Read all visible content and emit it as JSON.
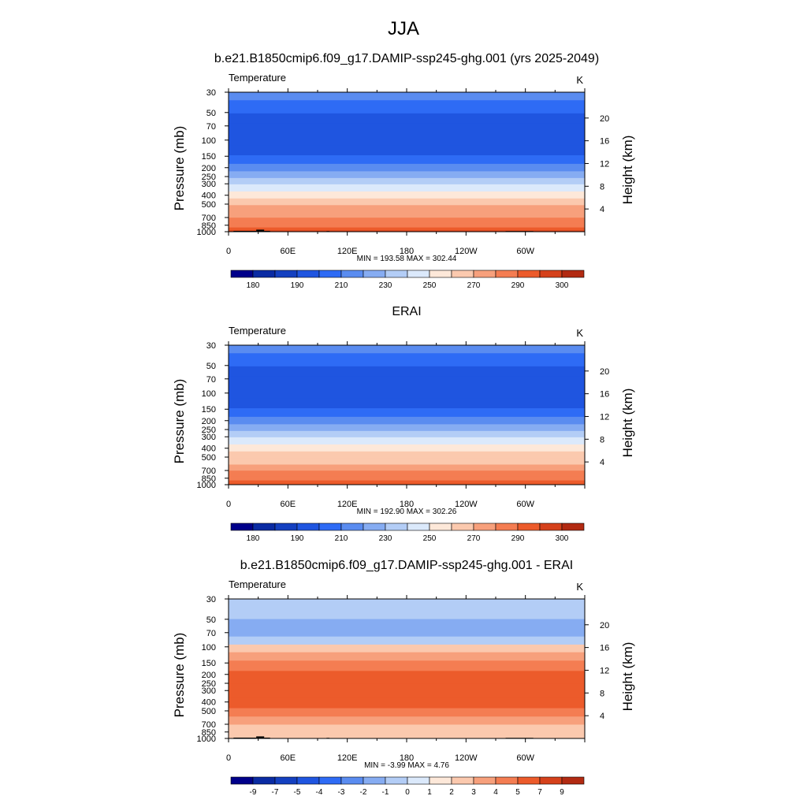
{
  "figure": {
    "season_title": "JJA"
  },
  "chart_data": [
    {
      "type": "heatmap",
      "title": "b.e21.B1850cmip6.f09_g17.DAMIP-ssp245-ghg.001 (yrs 2025-2049)",
      "variable": "Temperature",
      "units": "K",
      "xlabel": "",
      "ylabel": "Pressure (mb)",
      "ylabel_right": "Height (km)",
      "x_ticks": [
        "0",
        "60E",
        "120E",
        "180",
        "120W",
        "60W"
      ],
      "x_tick_values": [
        0,
        60,
        120,
        180,
        240,
        300
      ],
      "xlim": [
        0,
        360
      ],
      "y_scale": "log",
      "y_ticks": [
        "30",
        "50",
        "70",
        "100",
        "150",
        "200",
        "250",
        "300",
        "400",
        "500",
        "700",
        "850",
        "1000"
      ],
      "y_tick_values": [
        30,
        50,
        70,
        100,
        150,
        200,
        250,
        300,
        400,
        500,
        700,
        850,
        1000
      ],
      "ylim": [
        30,
        1000
      ],
      "y_right_ticks": [
        "4",
        "8",
        "12",
        "16",
        "20"
      ],
      "y_right_tick_values": [
        4,
        8,
        12,
        16,
        20
      ],
      "stats": "MIN = 193.58  MAX = 302.44",
      "min": 193.58,
      "max": 302.44,
      "levels": [
        180,
        185,
        190,
        200,
        210,
        220,
        230,
        240,
        250,
        260,
        270,
        280,
        290,
        295,
        300
      ],
      "colorbar_labels": [
        "180",
        "190",
        "210",
        "230",
        "250",
        "270",
        "290",
        "300"
      ],
      "colorbar_label_positions": [
        1,
        3,
        5,
        7,
        9,
        11,
        13,
        15
      ],
      "colors": [
        "#00008a",
        "#0a2ba3",
        "#1440c0",
        "#1f55e0",
        "#2e6bf5",
        "#5a8cf0",
        "#86acf2",
        "#b3cdf6",
        "#dbe9fb",
        "#fde8d9",
        "#fbc9ae",
        "#f7a07c",
        "#f47d52",
        "#ec5b2b",
        "#d5411b",
        "#b22a12"
      ],
      "profile_level_values": [
        {
          "p": 30,
          "v": 210
        },
        {
          "p": 45,
          "v": 205
        },
        {
          "p": 58,
          "v": 197
        },
        {
          "p": 75,
          "v": 194
        },
        {
          "p": 100,
          "v": 193.6
        },
        {
          "p": 130,
          "v": 197
        },
        {
          "p": 165,
          "v": 205
        },
        {
          "p": 200,
          "v": 215
        },
        {
          "p": 240,
          "v": 225
        },
        {
          "p": 280,
          "v": 235
        },
        {
          "p": 330,
          "v": 245
        },
        {
          "p": 400,
          "v": 253
        },
        {
          "p": 470,
          "v": 262
        },
        {
          "p": 560,
          "v": 270
        },
        {
          "p": 650,
          "v": 277
        },
        {
          "p": 760,
          "v": 284
        },
        {
          "p": 860,
          "v": 289
        },
        {
          "p": 940,
          "v": 293
        },
        {
          "p": 1000,
          "v": 297
        }
      ],
      "topography_mask": [
        {
          "x0": 5,
          "x1": 28,
          "p_top": 980
        },
        {
          "x0": 28,
          "x1": 36,
          "p_top": 950
        },
        {
          "x0": 36,
          "x1": 42,
          "p_top": 980
        },
        {
          "x0": 99,
          "x1": 102,
          "p_top": 985
        },
        {
          "x0": 280,
          "x1": 308,
          "p_top": 985
        }
      ]
    },
    {
      "type": "heatmap",
      "title": "ERAI",
      "variable": "Temperature",
      "units": "K",
      "xlabel": "",
      "ylabel": "Pressure (mb)",
      "ylabel_right": "Height (km)",
      "x_ticks": [
        "0",
        "60E",
        "120E",
        "180",
        "120W",
        "60W"
      ],
      "x_tick_values": [
        0,
        60,
        120,
        180,
        240,
        300
      ],
      "xlim": [
        0,
        360
      ],
      "y_scale": "log",
      "y_ticks": [
        "30",
        "50",
        "70",
        "100",
        "150",
        "200",
        "250",
        "300",
        "400",
        "500",
        "700",
        "850",
        "1000"
      ],
      "y_tick_values": [
        30,
        50,
        70,
        100,
        150,
        200,
        250,
        300,
        400,
        500,
        700,
        850,
        1000
      ],
      "ylim": [
        30,
        1000
      ],
      "y_right_ticks": [
        "4",
        "8",
        "12",
        "16",
        "20"
      ],
      "y_right_tick_values": [
        4,
        8,
        12,
        16,
        20
      ],
      "stats": "MIN = 192.90  MAX = 302.26",
      "min": 192.9,
      "max": 302.26,
      "levels": [
        180,
        185,
        190,
        200,
        210,
        220,
        230,
        240,
        250,
        260,
        270,
        280,
        290,
        295,
        300
      ],
      "colorbar_labels": [
        "180",
        "190",
        "210",
        "230",
        "250",
        "270",
        "290",
        "300"
      ],
      "colorbar_label_positions": [
        1,
        3,
        5,
        7,
        9,
        11,
        13,
        15
      ],
      "colors": [
        "#00008a",
        "#0a2ba3",
        "#1440c0",
        "#1f55e0",
        "#2e6bf5",
        "#5a8cf0",
        "#86acf2",
        "#b3cdf6",
        "#dbe9fb",
        "#fde8d9",
        "#fbc9ae",
        "#f7a07c",
        "#f47d52",
        "#ec5b2b",
        "#d5411b",
        "#b22a12"
      ],
      "profile_level_values": [
        {
          "p": 30,
          "v": 210
        },
        {
          "p": 45,
          "v": 205
        },
        {
          "p": 58,
          "v": 197
        },
        {
          "p": 75,
          "v": 194
        },
        {
          "p": 100,
          "v": 192.9
        },
        {
          "p": 130,
          "v": 197
        },
        {
          "p": 165,
          "v": 205
        },
        {
          "p": 200,
          "v": 215
        },
        {
          "p": 240,
          "v": 225
        },
        {
          "p": 280,
          "v": 235
        },
        {
          "p": 330,
          "v": 245
        },
        {
          "p": 400,
          "v": 252
        },
        {
          "p": 470,
          "v": 260
        },
        {
          "p": 560,
          "v": 268
        },
        {
          "p": 650,
          "v": 275
        },
        {
          "p": 760,
          "v": 282
        },
        {
          "p": 860,
          "v": 287
        },
        {
          "p": 940,
          "v": 291
        },
        {
          "p": 1000,
          "v": 294
        }
      ],
      "topography_mask": []
    },
    {
      "type": "heatmap",
      "title": "b.e21.B1850cmip6.f09_g17.DAMIP-ssp245-ghg.001 - ERAI",
      "variable": "Temperature",
      "units": "K",
      "xlabel": "",
      "ylabel": "Pressure (mb)",
      "ylabel_right": "Height (km)",
      "x_ticks": [
        "0",
        "60E",
        "120E",
        "180",
        "120W",
        "60W"
      ],
      "x_tick_values": [
        0,
        60,
        120,
        180,
        240,
        300
      ],
      "xlim": [
        0,
        360
      ],
      "y_scale": "log",
      "y_ticks": [
        "30",
        "50",
        "70",
        "100",
        "150",
        "200",
        "250",
        "300",
        "400",
        "500",
        "700",
        "850",
        "1000"
      ],
      "y_tick_values": [
        30,
        50,
        70,
        100,
        150,
        200,
        250,
        300,
        400,
        500,
        700,
        850,
        1000
      ],
      "ylim": [
        30,
        1000
      ],
      "y_right_ticks": [
        "4",
        "8",
        "12",
        "16",
        "20"
      ],
      "y_right_tick_values": [
        4,
        8,
        12,
        16,
        20
      ],
      "stats": "MIN =  -3.99  MAX =   4.76",
      "min": -3.99,
      "max": 4.76,
      "levels": [
        -9,
        -8,
        -7,
        -6,
        -5,
        -4,
        -3,
        -2,
        -1,
        0,
        1,
        2,
        3,
        4,
        5,
        7,
        9
      ],
      "colorbar_labels": [
        "-9",
        "-7",
        "-5",
        "-4",
        "-3",
        "-2",
        "-1",
        "0",
        "1",
        "2",
        "3",
        "4",
        "5",
        "7",
        "9"
      ],
      "colorbar_label_positions": [
        1,
        2,
        3,
        4,
        5,
        6,
        7,
        8,
        9,
        10,
        11,
        12,
        13,
        14,
        15
      ],
      "colors": [
        "#00008a",
        "#0a2ba3",
        "#1440c0",
        "#1f55e0",
        "#2e6bf5",
        "#5a8cf0",
        "#86acf2",
        "#b3cdf6",
        "#dbe9fb",
        "#fde8d9",
        "#fbc9ae",
        "#f7a07c",
        "#f47d52",
        "#ec5b2b",
        "#d5411b",
        "#b22a12"
      ],
      "profile_level_values": [
        {
          "p": 30,
          "v": -2.5
        },
        {
          "p": 45,
          "v": -2.4
        },
        {
          "p": 55,
          "v": -3.2
        },
        {
          "p": 70,
          "v": -3.5
        },
        {
          "p": 85,
          "v": -2.3
        },
        {
          "p": 105,
          "v": 0.6
        },
        {
          "p": 125,
          "v": 1.6
        },
        {
          "p": 160,
          "v": 2.5
        },
        {
          "p": 210,
          "v": 3.3
        },
        {
          "p": 300,
          "v": 3.5
        },
        {
          "p": 420,
          "v": 3.4
        },
        {
          "p": 520,
          "v": 2.6
        },
        {
          "p": 640,
          "v": 1.6
        },
        {
          "p": 780,
          "v": 0.9
        },
        {
          "p": 900,
          "v": 0.4
        },
        {
          "p": 1000,
          "v": 0.3
        }
      ],
      "topography_mask": [
        {
          "x0": 5,
          "x1": 28,
          "p_top": 980
        },
        {
          "x0": 28,
          "x1": 36,
          "p_top": 950
        },
        {
          "x0": 36,
          "x1": 42,
          "p_top": 980
        },
        {
          "x0": 99,
          "x1": 102,
          "p_top": 985
        },
        {
          "x0": 280,
          "x1": 308,
          "p_top": 985
        }
      ]
    }
  ]
}
